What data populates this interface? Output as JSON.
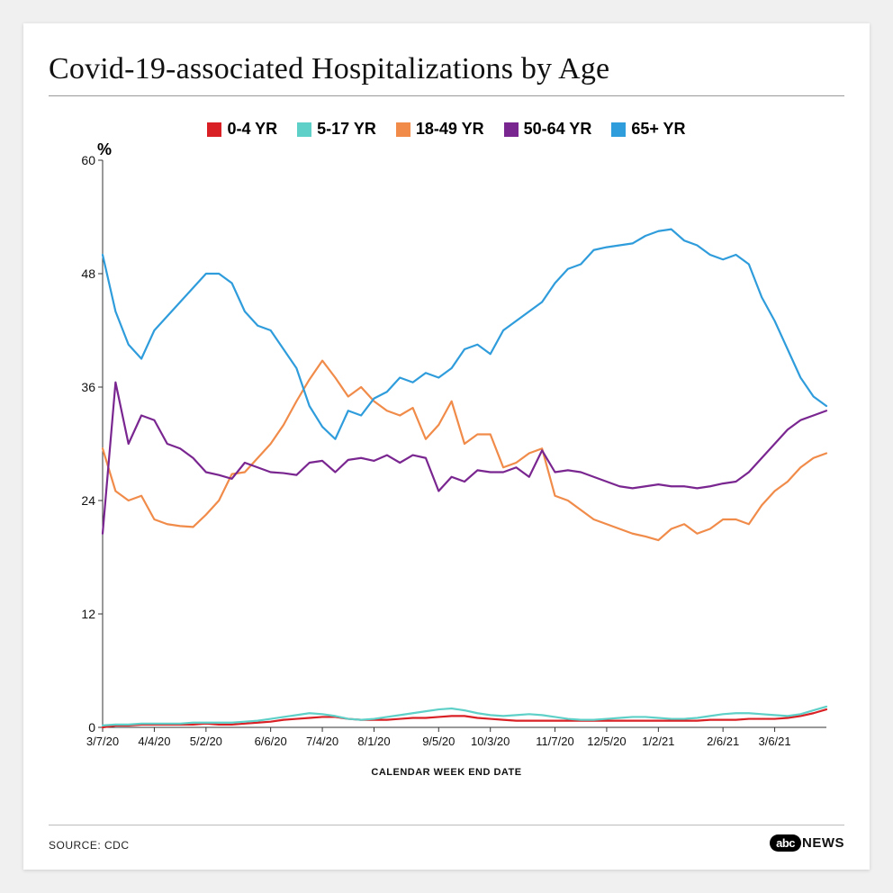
{
  "title": "Covid-19-associated Hospitalizations by Age",
  "yaxis_label": "%",
  "xaxis_title": "CALENDAR WEEK END DATE",
  "source": "SOURCE: CDC",
  "brand_abc": "abc",
  "brand_news": "NEWS",
  "title_fontsize": 34,
  "legend_fontsize": 18,
  "tick_fontsize": 14,
  "background_color": "#ffffff",
  "axis_color": "#333333",
  "line_width": 2.2,
  "ylim": [
    0,
    60
  ],
  "ytick_step": 12,
  "yticks": [
    0,
    12,
    24,
    36,
    48,
    60
  ],
  "xticks": [
    "3/7/20",
    "4/4/20",
    "5/2/20",
    "6/6/20",
    "7/4/20",
    "8/1/20",
    "9/5/20",
    "10/3/20",
    "11/7/20",
    "12/5/20",
    "1/2/21",
    "2/6/21",
    "3/6/21"
  ],
  "xtick_indices": [
    0,
    4,
    8,
    13,
    17,
    21,
    26,
    30,
    35,
    39,
    43,
    48,
    52
  ],
  "num_points": 57,
  "series": [
    {
      "name": "0-4 YR",
      "color": "#d92024",
      "data": [
        0.0,
        0.2,
        0.2,
        0.3,
        0.3,
        0.3,
        0.3,
        0.3,
        0.4,
        0.3,
        0.3,
        0.4,
        0.5,
        0.6,
        0.8,
        0.9,
        1.0,
        1.1,
        1.1,
        0.9,
        0.8,
        0.8,
        0.8,
        0.9,
        1.0,
        1.0,
        1.1,
        1.2,
        1.2,
        1.0,
        0.9,
        0.8,
        0.7,
        0.7,
        0.7,
        0.7,
        0.7,
        0.7,
        0.7,
        0.7,
        0.7,
        0.7,
        0.7,
        0.7,
        0.7,
        0.7,
        0.7,
        0.8,
        0.8,
        0.8,
        0.9,
        0.9,
        0.9,
        1.0,
        1.2,
        1.5,
        1.9
      ]
    },
    {
      "name": "5-17 YR",
      "color": "#5fd0c8",
      "data": [
        0.2,
        0.3,
        0.3,
        0.4,
        0.4,
        0.4,
        0.4,
        0.5,
        0.5,
        0.5,
        0.5,
        0.6,
        0.7,
        0.9,
        1.1,
        1.3,
        1.5,
        1.4,
        1.2,
        0.9,
        0.8,
        0.9,
        1.1,
        1.3,
        1.5,
        1.7,
        1.9,
        2.0,
        1.8,
        1.5,
        1.3,
        1.2,
        1.3,
        1.4,
        1.3,
        1.1,
        0.9,
        0.8,
        0.8,
        0.9,
        1.0,
        1.1,
        1.1,
        1.0,
        0.9,
        0.9,
        1.0,
        1.2,
        1.4,
        1.5,
        1.5,
        1.4,
        1.3,
        1.2,
        1.4,
        1.8,
        2.2
      ]
    },
    {
      "name": "18-49 YR",
      "color": "#f08b4a",
      "data": [
        29.5,
        25.0,
        24.0,
        24.5,
        22.0,
        21.5,
        21.3,
        21.2,
        22.5,
        24.0,
        26.8,
        27.0,
        28.5,
        30.0,
        32.0,
        34.5,
        36.8,
        38.8,
        37.0,
        35.0,
        36.0,
        34.5,
        33.5,
        33.0,
        33.8,
        30.5,
        32.0,
        34.5,
        30.0,
        31.0,
        31.0,
        27.5,
        28.0,
        29.0,
        29.5,
        24.5,
        24.0,
        23.0,
        22.0,
        21.5,
        21.0,
        20.5,
        20.2,
        19.8,
        21.0,
        21.5,
        20.5,
        21.0,
        22.0,
        22.0,
        21.5,
        23.5,
        25.0,
        26.0,
        27.5,
        28.5,
        29.0
      ]
    },
    {
      "name": "50-64 YR",
      "color": "#7a2690",
      "data": [
        20.5,
        36.5,
        30.0,
        33.0,
        32.5,
        30.0,
        29.5,
        28.5,
        27.0,
        26.7,
        26.3,
        28.0,
        27.5,
        27.0,
        26.9,
        26.7,
        28.0,
        28.2,
        27.0,
        28.3,
        28.5,
        28.2,
        28.8,
        28.0,
        28.8,
        28.5,
        25.0,
        26.5,
        26.0,
        27.2,
        27.0,
        27.0,
        27.5,
        26.5,
        29.3,
        27.0,
        27.2,
        27.0,
        26.5,
        26.0,
        25.5,
        25.3,
        25.5,
        25.7,
        25.5,
        25.5,
        25.3,
        25.5,
        25.8,
        26.0,
        27.0,
        28.5,
        30.0,
        31.5,
        32.5,
        33.0,
        33.5
      ]
    },
    {
      "name": "65+ YR",
      "color": "#2f9cdb",
      "data": [
        50.0,
        44.0,
        40.5,
        39.0,
        42.0,
        43.5,
        45.0,
        46.5,
        48.0,
        48.0,
        47.0,
        44.0,
        42.5,
        42.0,
        40.0,
        38.0,
        34.0,
        31.8,
        30.5,
        33.5,
        33.0,
        34.8,
        35.5,
        37.0,
        36.5,
        37.5,
        37.0,
        38.0,
        40.0,
        40.5,
        39.5,
        42.0,
        43.0,
        44.0,
        45.0,
        47.0,
        48.5,
        49.0,
        50.5,
        50.8,
        51.0,
        51.2,
        52.0,
        52.5,
        52.7,
        51.5,
        51.0,
        50.0,
        49.5,
        50.0,
        49.0,
        45.5,
        43.0,
        40.0,
        37.0,
        35.0,
        34.0
      ]
    }
  ]
}
